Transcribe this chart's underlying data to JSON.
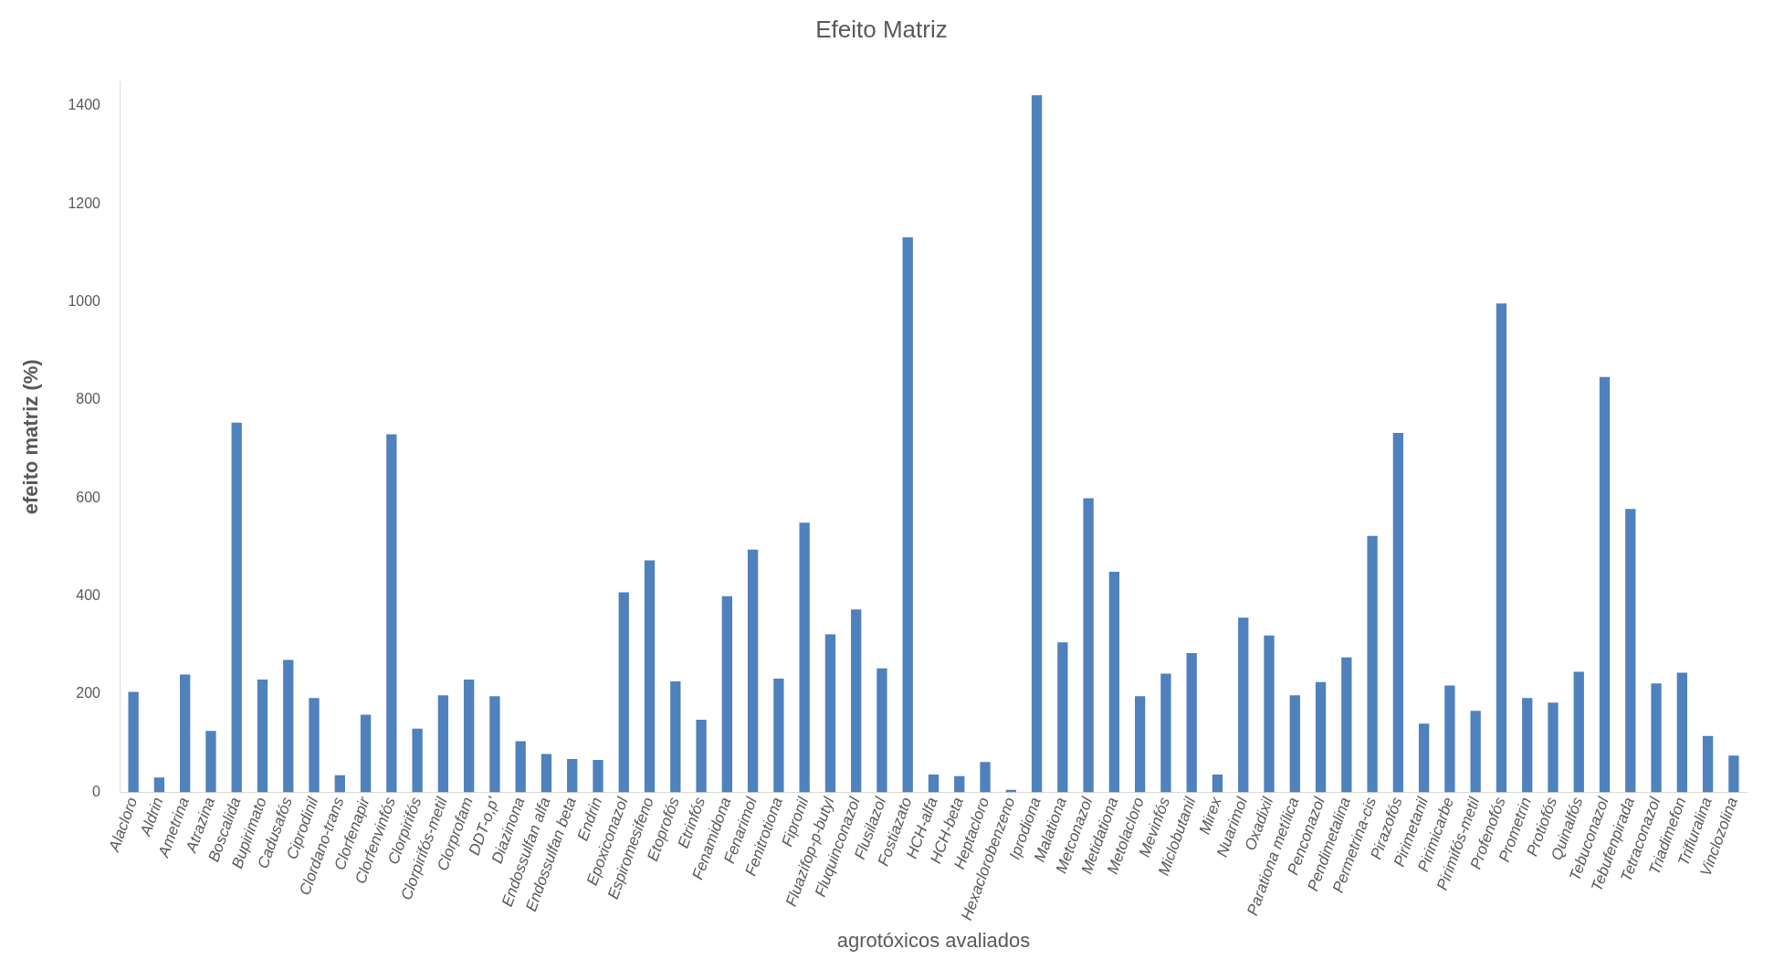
{
  "chart_data": {
    "type": "bar",
    "title": "Efeito Matriz",
    "xlabel": "agrotóxicos avaliados",
    "ylabel": "efeito matriz (%)",
    "categories": [
      "Alacloro",
      "Aldrin",
      "Ametrina",
      "Atrazina",
      "Boscalida",
      "Bupirimato",
      "Cadusafós",
      "Ciprodinil",
      "Clordano-trans",
      "Clorfenapir",
      "Clorfenvinfós",
      "Clorpirifós",
      "Clorpirifós-metil",
      "Clorprofam",
      "DDT-o,p'",
      "Diazinona",
      "Endossulfan alfa",
      "Endossulfan beta",
      "Endrin",
      "Epoxiconazol",
      "Espiromesifeno",
      "Etoprofós",
      "Etrinfós",
      "Fenamidona",
      "Fenarimol",
      "Fenitrotiona",
      "Fipronil",
      "Fluazifop-p-butyl",
      "Fluquinconazol",
      "Flusilazol",
      "Fostiazato",
      "HCH-alfa",
      "HCH-beta",
      "Heptacloro",
      "Hexaclorobenzeno",
      "Iprodiona",
      "Malationa",
      "Metconazol",
      "Metidationa",
      "Metolacloro",
      "Mevinfós",
      "Miclobutanil",
      "Mirex",
      "Nuarimol",
      "Oxadixil",
      "Parationa metílica",
      "Penconazol",
      "Pendimetalina",
      "Permetrina-cis",
      "Pirazofós",
      "Pirimetanil",
      "Pirimicarbe",
      "Pirimifós-metil",
      "Profenofós",
      "Prometrin",
      "Protiofós",
      "Quinalfós",
      "Tebuconazol",
      "Tebufenpirada",
      "Tetraconazol",
      "Triadimefon",
      "Trifluralina",
      "Vinclozolina"
    ],
    "values": [
      205,
      30,
      240,
      125,
      754,
      230,
      270,
      192,
      35,
      158,
      730,
      130,
      198,
      230,
      196,
      104,
      78,
      68,
      66,
      408,
      473,
      226,
      148,
      400,
      495,
      232,
      550,
      322,
      373,
      253,
      1132,
      36,
      33,
      62,
      5,
      1422,
      306,
      600,
      450,
      196,
      242,
      284,
      36,
      356,
      320,
      198,
      225,
      275,
      523,
      733,
      140,
      218,
      166,
      997,
      192,
      183,
      246,
      847,
      578,
      222,
      244,
      115,
      75
    ],
    "color": "#4f81bd",
    "ylim": [
      0,
      1450
    ],
    "yticks": [
      0,
      200,
      400,
      600,
      800,
      1000,
      1200,
      1400
    ],
    "grid": false,
    "legend": false
  }
}
